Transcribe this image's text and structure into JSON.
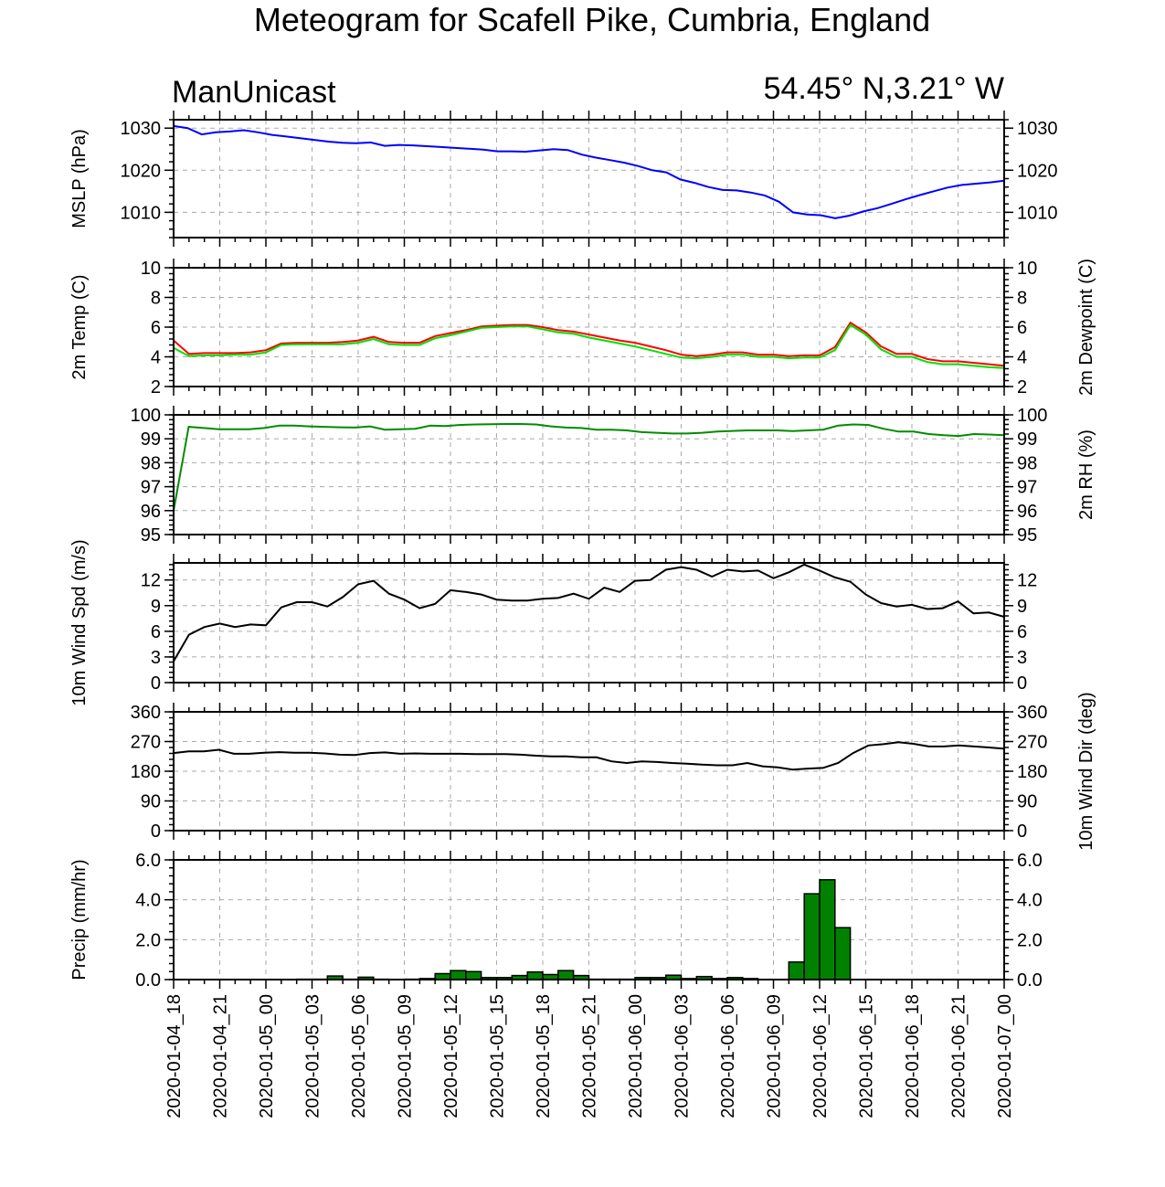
{
  "header": {
    "title": "Meteogram for Scafell Pike, Cumbria, England",
    "left_label": "ManUnicast",
    "right_label": "54.45° N,3.21° W"
  },
  "time_axis": {
    "ticks": [
      "2020-01-04_18",
      "2020-01-04_21",
      "2020-01-05_00",
      "2020-01-05_03",
      "2020-01-05_06",
      "2020-01-05_09",
      "2020-01-05_12",
      "2020-01-05_15",
      "2020-01-05_18",
      "2020-01-05_21",
      "2020-01-06_00",
      "2020-01-06_03",
      "2020-01-06_06",
      "2020-01-06_09",
      "2020-01-06_12",
      "2020-01-06_15",
      "2020-01-06_18",
      "2020-01-06_21",
      "2020-01-07_00"
    ],
    "range_hours": [
      0,
      54
    ],
    "step_hours": 1
  },
  "colors": {
    "mslp": "#0000ff",
    "temp": "#ff0000",
    "dewpoint": "#00e000",
    "rh": "#008c00",
    "wind": "#000000",
    "precip_fill": "#008200",
    "grid": "#aaaaaa"
  },
  "chart_data": [
    {
      "type": "line",
      "id": "mslp",
      "ylabel": "MSLP (hPa)",
      "ylim": [
        1004,
        1032
      ],
      "yticks": [
        1010,
        1020,
        1030
      ],
      "series": [
        {
          "values": [
            1030.5,
            1030,
            1028.5,
            1029,
            1029.2,
            1029.5,
            1029,
            1028.4,
            1028,
            1027.6,
            1027.2,
            1026.8,
            1026.5,
            1026.4,
            1026.6,
            1025.8,
            1026,
            1025.9,
            1025.7,
            1025.5,
            1025.3,
            1025.1,
            1024.9,
            1024.5,
            1024.5,
            1024.4,
            1024.7,
            1025,
            1024.8,
            1023.7,
            1023,
            1022.4,
            1021.8,
            1021,
            1020,
            1019.5,
            1017.8,
            1017,
            1016,
            1015.3,
            1015.2,
            1014.7,
            1014,
            1012.5,
            1010,
            1009.5,
            1009.3,
            1008.6,
            1009.2,
            1010.2,
            1011,
            1012,
            1013.1,
            1014.1,
            1015,
            1015.9,
            1016.5,
            1016.8,
            1017.1,
            1017.5
          ]
        }
      ]
    },
    {
      "type": "line",
      "id": "temp",
      "ylabel": "2m Temp (C)",
      "ylabel_right": "2m Dewpoint (C)",
      "ylim": [
        2,
        10
      ],
      "yticks": [
        2,
        4,
        6,
        8,
        10
      ],
      "series": [
        {
          "values": [
            5.1,
            4.2,
            4.25,
            4.25,
            4.25,
            4.3,
            4.45,
            4.9,
            4.95,
            4.95,
            4.95,
            5,
            5.1,
            5.35,
            5,
            4.95,
            4.95,
            5.4,
            5.6,
            5.8,
            6.05,
            6.1,
            6.15,
            6.15,
            6,
            5.8,
            5.7,
            5.5,
            5.3,
            5.1,
            4.95,
            4.7,
            4.45,
            4.15,
            4.05,
            4.15,
            4.3,
            4.3,
            4.15,
            4.15,
            4.05,
            4.1,
            4.1,
            4.65,
            6.3,
            5.65,
            4.7,
            4.2,
            4.2,
            3.85,
            3.7,
            3.7,
            3.6,
            3.5,
            3.4
          ]
        },
        {
          "values": [
            4.6,
            4.05,
            4.1,
            4.1,
            4.15,
            4.15,
            4.3,
            4.8,
            4.85,
            4.85,
            4.85,
            4.85,
            4.95,
            5.2,
            4.85,
            4.8,
            4.8,
            5.25,
            5.45,
            5.7,
            5.95,
            6,
            6.05,
            6.05,
            5.85,
            5.65,
            5.55,
            5.3,
            5.1,
            4.9,
            4.7,
            4.45,
            4.2,
            3.95,
            3.9,
            4,
            4.15,
            4.15,
            4,
            4,
            3.9,
            3.95,
            3.95,
            4.45,
            6.15,
            5.5,
            4.5,
            4,
            4,
            3.65,
            3.5,
            3.5,
            3.4,
            3.3,
            3.25
          ]
        }
      ]
    },
    {
      "type": "line",
      "id": "rh",
      "ylabel_right": "2m RH (%)",
      "ylim": [
        95,
        100
      ],
      "yticks": [
        95,
        96,
        97,
        98,
        99,
        100
      ],
      "series": [
        {
          "values": [
            96,
            99.5,
            99.45,
            99.4,
            99.4,
            99.4,
            99.45,
            99.55,
            99.55,
            99.52,
            99.5,
            99.48,
            99.47,
            99.52,
            99.38,
            99.4,
            99.42,
            99.55,
            99.53,
            99.58,
            99.6,
            99.61,
            99.62,
            99.62,
            99.6,
            99.52,
            99.47,
            99.45,
            99.38,
            99.38,
            99.35,
            99.28,
            99.25,
            99.22,
            99.22,
            99.25,
            99.3,
            99.33,
            99.35,
            99.35,
            99.35,
            99.32,
            99.35,
            99.38,
            99.55,
            99.6,
            99.58,
            99.42,
            99.3,
            99.3,
            99.2,
            99.15,
            99.12,
            99.2,
            99.18,
            99.15
          ]
        }
      ]
    },
    {
      "type": "line",
      "id": "wind_spd",
      "ylabel": "10m Wind Spd (m/s)",
      "ylim": [
        0,
        14
      ],
      "yticks": [
        0,
        3,
        6,
        9,
        12
      ],
      "series": [
        {
          "values": [
            2.5,
            5.6,
            6.5,
            6.9,
            6.5,
            6.8,
            6.7,
            8.8,
            9.4,
            9.4,
            8.9,
            10,
            11.5,
            11.9,
            10.4,
            9.7,
            8.7,
            9.2,
            10.8,
            10.6,
            10.3,
            9.7,
            9.6,
            9.6,
            9.8,
            9.9,
            10.4,
            9.8,
            11.1,
            10.6,
            11.9,
            12,
            13.2,
            13.5,
            13.2,
            12.4,
            13.2,
            13,
            13.1,
            12.2,
            12.9,
            13.8,
            13.1,
            12.3,
            11.8,
            10.3,
            9.3,
            8.9,
            9.1,
            8.6,
            8.7,
            9.5,
            8.1,
            8.2,
            7.7
          ]
        }
      ]
    },
    {
      "type": "line",
      "id": "wind_dir",
      "ylabel_right": "10m Wind Dir (deg)",
      "ylim": [
        0,
        360
      ],
      "yticks": [
        0,
        90,
        180,
        270,
        360
      ],
      "series": [
        {
          "values": [
            235,
            240,
            240,
            245,
            233,
            233,
            236,
            238,
            236,
            236,
            234,
            230,
            229,
            235,
            237,
            233,
            234,
            233,
            233,
            233,
            232,
            232,
            232,
            230,
            227,
            225,
            225,
            222,
            222,
            210,
            205,
            210,
            208,
            205,
            203,
            200,
            198,
            198,
            205,
            195,
            192,
            185,
            188,
            190,
            205,
            235,
            258,
            262,
            268,
            263,
            255,
            255,
            258,
            255,
            252,
            248
          ]
        }
      ]
    },
    {
      "type": "bar",
      "id": "precip",
      "ylabel": "Precip (mm/hr)",
      "ylim": [
        0,
        6
      ],
      "yticks": [
        "0.0",
        "2.0",
        "4.0",
        "6.0"
      ],
      "values": [
        0,
        0,
        0,
        0,
        0,
        0,
        0,
        0,
        0.02,
        0.02,
        0.18,
        0.02,
        0.12,
        0.02,
        0,
        0.02,
        0.05,
        0.3,
        0.45,
        0.4,
        0.1,
        0.1,
        0.2,
        0.38,
        0.25,
        0.45,
        0.2,
        0.02,
        0.02,
        0.02,
        0.1,
        0.1,
        0.22,
        0.05,
        0.15,
        0.05,
        0.1,
        0.05,
        0,
        0,
        0.88,
        4.3,
        5,
        2.6,
        0,
        0,
        0,
        0,
        0,
        0,
        0,
        0,
        0,
        0
      ]
    }
  ]
}
